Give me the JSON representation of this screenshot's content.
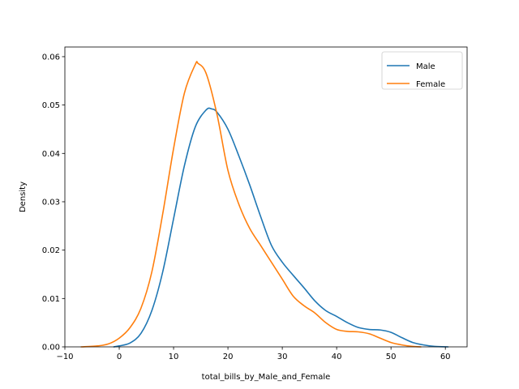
{
  "chart_data": {
    "type": "line",
    "xlabel": "total_bills_by_Male_and_Female",
    "ylabel": "Density",
    "xlim": [
      -10,
      64
    ],
    "ylim": [
      0,
      0.062
    ],
    "x_ticks": [
      -10,
      0,
      10,
      20,
      30,
      40,
      50,
      60
    ],
    "x_tick_labels": [
      "−10",
      "0",
      "10",
      "20",
      "30",
      "40",
      "50",
      "60"
    ],
    "y_ticks": [
      0,
      0.01,
      0.02,
      0.03,
      0.04,
      0.05,
      0.06
    ],
    "y_tick_labels": [
      "0.00",
      "0.01",
      "0.02",
      "0.03",
      "0.04",
      "0.05",
      "0.06"
    ],
    "grid": false,
    "legend_position": "top-right",
    "series": [
      {
        "name": "Male",
        "color": "#1f77b4",
        "points": [
          [
            -1.0,
            0.0
          ],
          [
            0,
            0.0002
          ],
          [
            2,
            0.0008
          ],
          [
            4,
            0.0028
          ],
          [
            6,
            0.0075
          ],
          [
            8,
            0.0155
          ],
          [
            10,
            0.0265
          ],
          [
            12,
            0.0375
          ],
          [
            14,
            0.0455
          ],
          [
            16,
            0.049
          ],
          [
            17,
            0.0492
          ],
          [
            18,
            0.0485
          ],
          [
            20,
            0.045
          ],
          [
            22,
            0.0395
          ],
          [
            24,
            0.0335
          ],
          [
            26,
            0.027
          ],
          [
            28,
            0.021
          ],
          [
            30,
            0.0175
          ],
          [
            32,
            0.0148
          ],
          [
            34,
            0.0122
          ],
          [
            36,
            0.0095
          ],
          [
            38,
            0.0075
          ],
          [
            40,
            0.0063
          ],
          [
            42,
            0.005
          ],
          [
            44,
            0.004
          ],
          [
            46,
            0.0036
          ],
          [
            48,
            0.0035
          ],
          [
            50,
            0.003
          ],
          [
            52,
            0.0019
          ],
          [
            54,
            0.0009
          ],
          [
            56,
            0.0004
          ],
          [
            58,
            0.0001
          ],
          [
            60.5,
            0.0
          ]
        ]
      },
      {
        "name": "Female",
        "color": "#ff7f0e",
        "points": [
          [
            -7.0,
            0.0
          ],
          [
            -4,
            0.0002
          ],
          [
            -2,
            0.0006
          ],
          [
            0,
            0.0018
          ],
          [
            2,
            0.004
          ],
          [
            4,
            0.008
          ],
          [
            6,
            0.0155
          ],
          [
            8,
            0.0275
          ],
          [
            10,
            0.041
          ],
          [
            12,
            0.0525
          ],
          [
            14,
            0.0584
          ],
          [
            14.5,
            0.0586
          ],
          [
            16,
            0.0565
          ],
          [
            18,
            0.048
          ],
          [
            20,
            0.0365
          ],
          [
            22,
            0.0295
          ],
          [
            24,
            0.0245
          ],
          [
            26,
            0.021
          ],
          [
            28,
            0.0175
          ],
          [
            30,
            0.014
          ],
          [
            32,
            0.0105
          ],
          [
            34,
            0.0085
          ],
          [
            36,
            0.007
          ],
          [
            38,
            0.005
          ],
          [
            40,
            0.0036
          ],
          [
            42,
            0.0032
          ],
          [
            44,
            0.0031
          ],
          [
            46,
            0.0027
          ],
          [
            48,
            0.0018
          ],
          [
            50,
            0.0009
          ],
          [
            52,
            0.0004
          ],
          [
            54,
            0.0001
          ],
          [
            55.5,
            0.0
          ]
        ]
      }
    ]
  }
}
